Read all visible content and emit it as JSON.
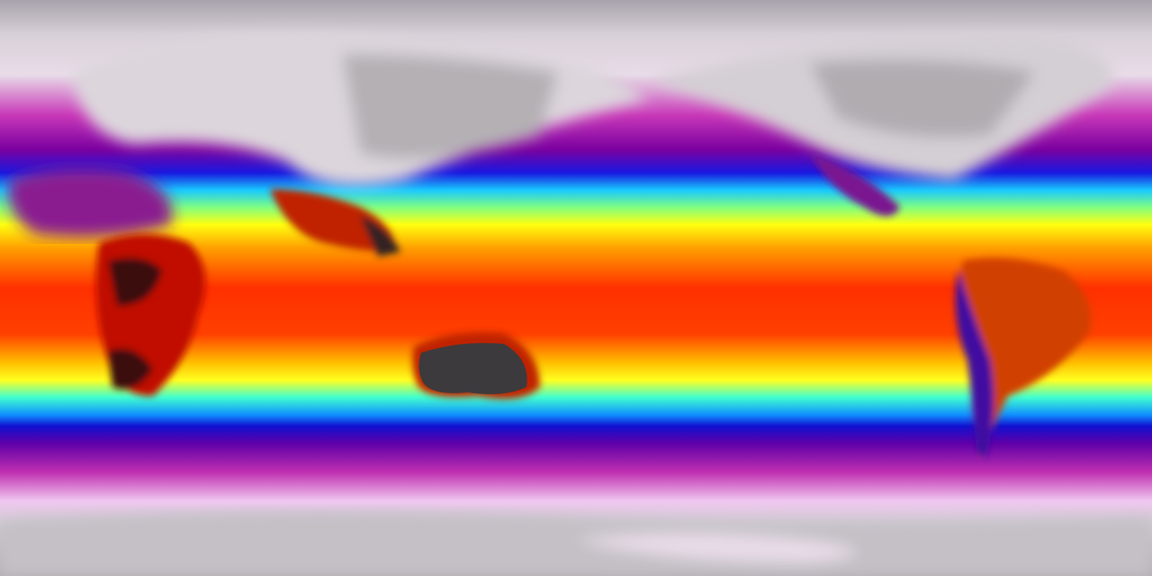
{
  "map": {
    "projection": "equirectangular",
    "variable_shown": "temperature",
    "colormap": [
      "#b8b4bc",
      "#f0e6f0",
      "#c030b0",
      "#8000a0",
      "#1010e0",
      "#10c0ff",
      "#60ffa0",
      "#ffff00",
      "#ff9000",
      "#ff2000",
      "#c00000",
      "#303030"
    ],
    "land_colors": {
      "hot_desert": "#2a2224",
      "polar": "#c8c4c8"
    }
  }
}
